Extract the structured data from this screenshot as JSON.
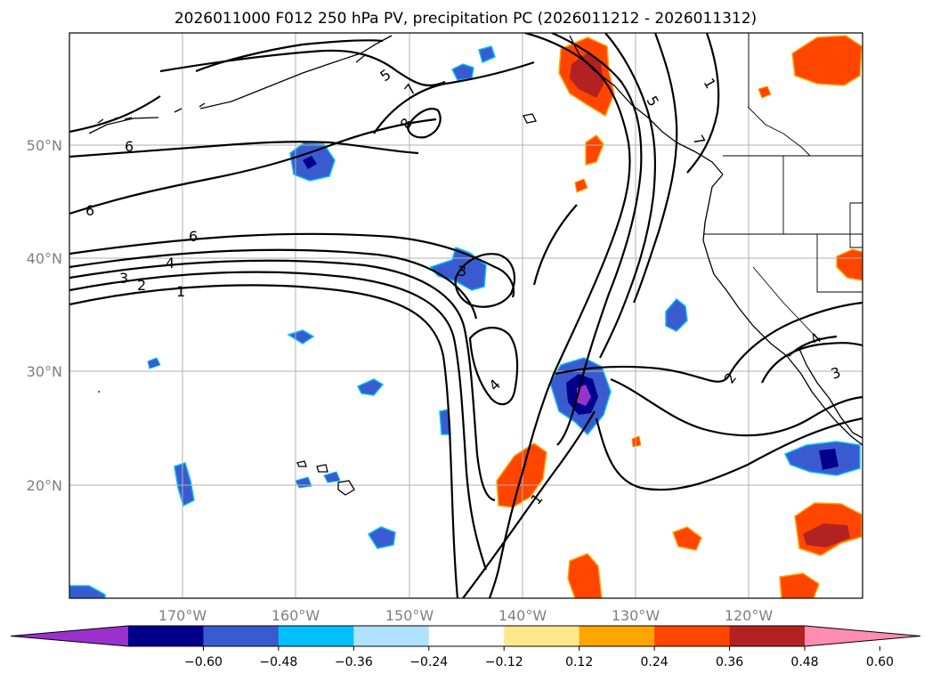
{
  "title": "2026011000 F012 250 hPa PV, precipitation PC (2026011212 - 2026011312)",
  "lat_labels": [
    "50°N",
    "40°N",
    "30°N",
    "20°N"
  ],
  "lon_labels": [
    "170°W",
    "160°W",
    "150°W",
    "140°W",
    "130°W",
    "120°W"
  ],
  "map_extent": {
    "lon_min": -180,
    "lon_max": -110,
    "lat_min": 10,
    "lat_max": 60
  },
  "colorbar": {
    "colors": [
      "#9932cc",
      "#00008b",
      "#3a5bd0",
      "#00bfff",
      "#b0e2ff",
      "#ffffff",
      "#fde98b",
      "#ffa500",
      "#ff4500",
      "#b22222",
      "#ff8cb1"
    ],
    "ticks": [
      "−0.60",
      "−0.48",
      "−0.36",
      "−0.24",
      "−0.12",
      "0.12",
      "0.24",
      "0.36",
      "0.48",
      "0.60"
    ]
  },
  "pv_contour_labels": [
    "5",
    "7",
    "8",
    "6",
    "6",
    "6",
    "4",
    "3",
    "2",
    "1",
    "3",
    "4",
    "1",
    "5",
    "7",
    "2",
    "3",
    "4",
    "1"
  ]
}
